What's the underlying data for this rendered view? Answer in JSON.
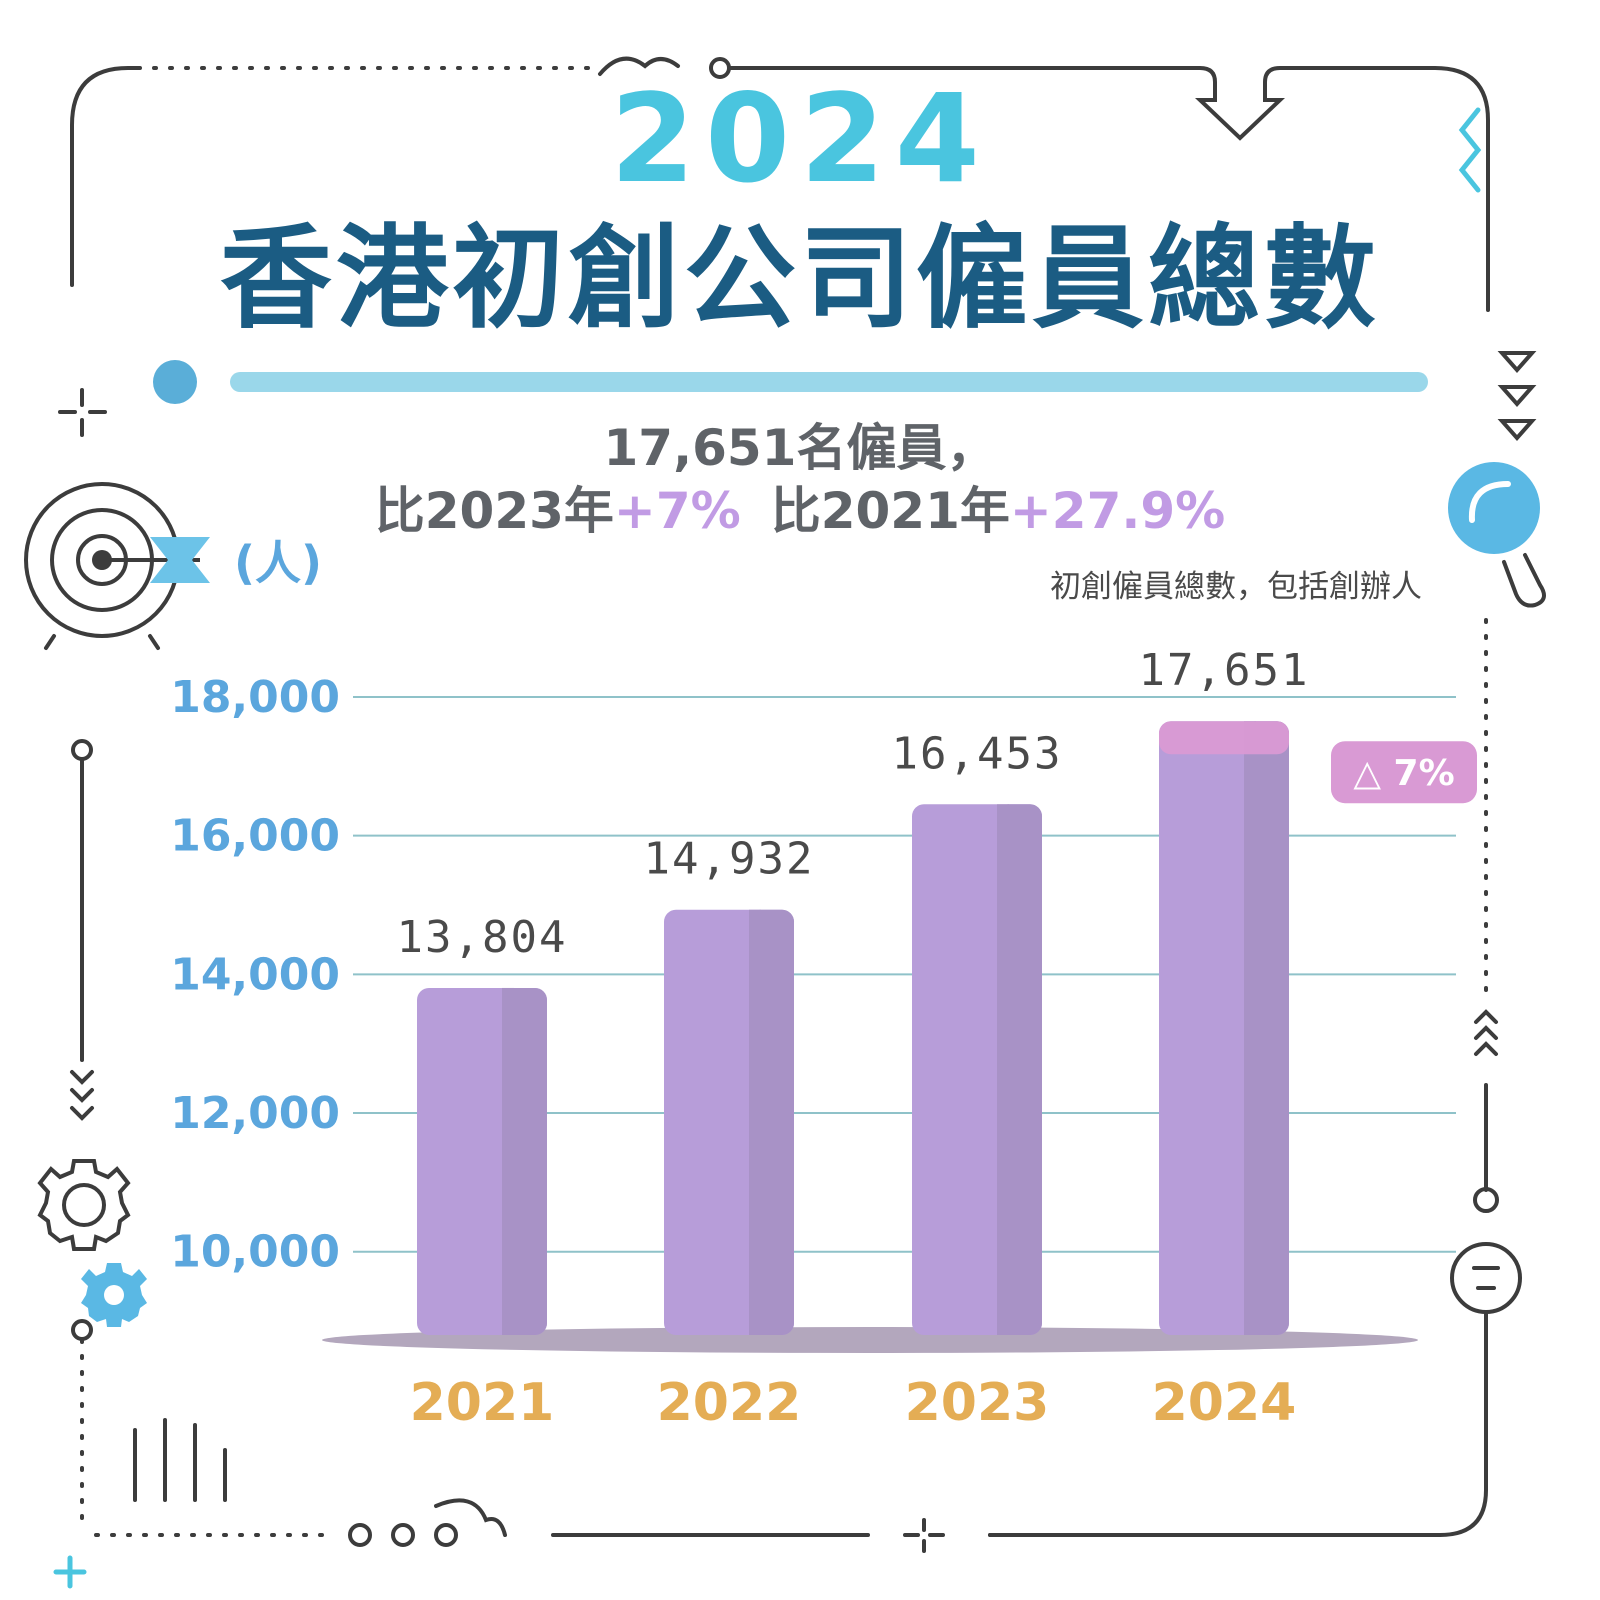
{
  "title": {
    "year": "2024",
    "main": "香港初創公司僱員總數"
  },
  "summary": {
    "line1": "17,651名僱員，",
    "vs2023_prefix": "比2023年",
    "vs2023_change": "+7%",
    "vs2021_prefix": "比2021年",
    "vs2021_change": "+27.9%"
  },
  "colors": {
    "bar": "#b79dd9",
    "bar_shade": "#a892c6",
    "highlight": "#d99ad4",
    "year_title": "#4ac5df",
    "main_title": "#1b5c83",
    "ytick": "#5ba6dd",
    "xtick": "#e4ad55",
    "grid": "#8fc2c9"
  },
  "chart_data": {
    "type": "bar",
    "title": "香港初創公司僱員總數",
    "ylabel": "(人)",
    "note": "初創僱員總數，包括創辦人",
    "categories": [
      "2021",
      "2022",
      "2023",
      "2024"
    ],
    "values": [
      13804,
      14932,
      16453,
      17651
    ],
    "value_labels": [
      "13,804",
      "14,932",
      "16,453",
      "17,651"
    ],
    "yticks": [
      10000,
      12000,
      14000,
      16000,
      18000
    ],
    "ytick_labels": [
      "10,000",
      "12,000",
      "14,000",
      "16,000",
      "18,000"
    ],
    "ylim": [
      8900,
      18000
    ],
    "grid": true,
    "annotation": {
      "category": "2024",
      "text": "△ 7%",
      "from_value": 16453,
      "to_value": 17651
    }
  }
}
